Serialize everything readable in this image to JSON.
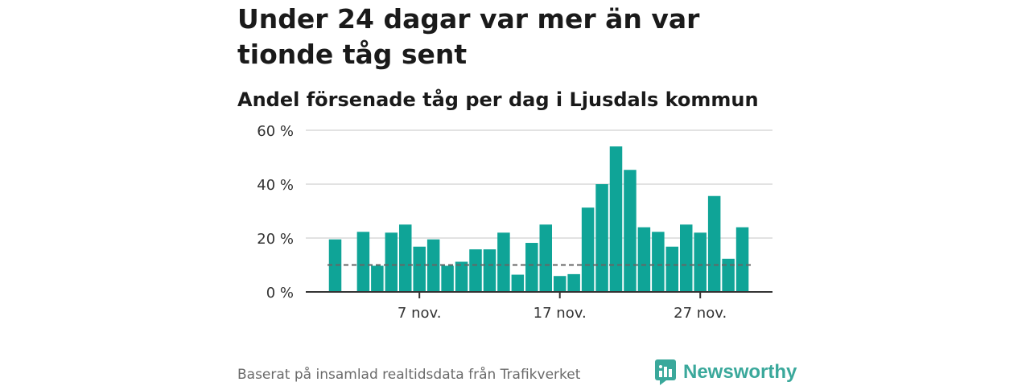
{
  "headline": "Under 24 dagar var mer än var tionde tåg sent",
  "subtitle": "Andel försenade tåg per dag i Ljusdals kommun",
  "source": "Baserat på insamlad realtidsdata från Trafikverket",
  "brand": "Newsworthy",
  "colors": {
    "bar": "#0fa497",
    "grid": "#d9d9d9",
    "axis": "#333333",
    "reference_line": "#666666",
    "text": "#1a1a1a",
    "brand": "#3aa89b"
  },
  "chart_data": {
    "type": "bar",
    "title": "Andel försenade tåg per dag i Ljusdals kommun",
    "xlabel": "",
    "ylabel": "",
    "x": [
      "1 nov.",
      "2 nov.",
      "3 nov.",
      "4 nov.",
      "5 nov.",
      "6 nov.",
      "7 nov.",
      "8 nov.",
      "9 nov.",
      "10 nov.",
      "11 nov.",
      "12 nov.",
      "13 nov.",
      "14 nov.",
      "15 nov.",
      "16 nov.",
      "17 nov.",
      "18 nov.",
      "19 nov.",
      "20 nov.",
      "21 nov.",
      "22 nov.",
      "23 nov.",
      "24 nov.",
      "25 nov.",
      "26 nov.",
      "27 nov.",
      "28 nov.",
      "29 nov.",
      "30 nov."
    ],
    "series": [
      {
        "values": [
          19.5,
          null,
          22.3,
          9.7,
          22.0,
          25.0,
          16.8,
          19.5,
          9.7,
          11.2,
          15.8,
          15.8,
          22.0,
          6.4,
          18.2,
          25.0,
          5.9,
          6.6,
          31.3,
          40.0,
          54.0,
          45.3,
          24.0,
          22.3,
          16.8,
          25.0,
          22.0,
          35.6,
          12.3,
          24.0
        ]
      }
    ],
    "reference_line": 10,
    "ylim": [
      0,
      60
    ],
    "yticks": [
      0,
      20,
      40,
      60
    ],
    "ytick_labels": [
      "0 %",
      "20 %",
      "40 %",
      "60 %"
    ],
    "xticks": [
      "7 nov.",
      "17 nov.",
      "27 nov."
    ],
    "grid": true,
    "legend": "none"
  }
}
